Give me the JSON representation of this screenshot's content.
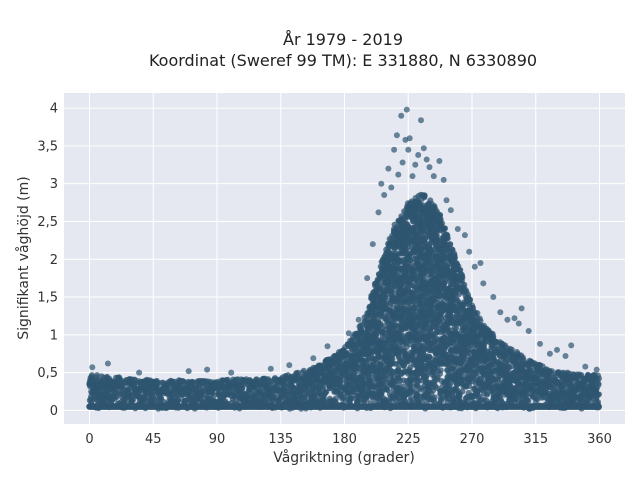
{
  "chart_data": {
    "type": "scatter",
    "title_line1": "År 1979 - 2019",
    "title_line2": "Koordinat (Sweref 99 TM): E 331880, N 6330890",
    "xlabel": "Vågriktning (grader)",
    "ylabel": "Signifikant våghöjd (m)",
    "xlim": [
      -18,
      378
    ],
    "ylim": [
      -0.18,
      4.2
    ],
    "x_ticks": [
      0,
      45,
      90,
      135,
      180,
      225,
      270,
      315,
      360
    ],
    "x_tick_labels": [
      "0",
      "45",
      "90",
      "135",
      "180",
      "225",
      "270",
      "315",
      "360"
    ],
    "y_ticks": [
      0,
      0.5,
      1,
      1.5,
      2,
      2.5,
      3,
      3.5,
      4
    ],
    "y_tick_labels": [
      "0",
      "0,5",
      "1",
      "1,5",
      "2",
      "2,5",
      "3",
      "3,5",
      "4"
    ],
    "grid": true,
    "colors": {
      "background": "#e5e8f0",
      "grid": "#ffffff",
      "marker": "#2f5570"
    },
    "envelope": {
      "x": [
        0,
        20,
        45,
        90,
        135,
        160,
        180,
        195,
        205,
        215,
        225,
        235,
        245,
        255,
        262,
        270,
        280,
        290,
        300,
        315,
        330,
        345,
        360
      ],
      "y_upper": [
        0.48,
        0.44,
        0.4,
        0.4,
        0.44,
        0.58,
        0.82,
        1.25,
        1.9,
        2.45,
        2.75,
        2.9,
        2.7,
        2.2,
        1.85,
        1.4,
        1.1,
        0.9,
        0.8,
        0.62,
        0.52,
        0.48,
        0.48
      ]
    },
    "outliers": [
      {
        "x": 2,
        "y": 0.57
      },
      {
        "x": 13,
        "y": 0.62
      },
      {
        "x": 35,
        "y": 0.5
      },
      {
        "x": 70,
        "y": 0.52
      },
      {
        "x": 83,
        "y": 0.54
      },
      {
        "x": 100,
        "y": 0.5
      },
      {
        "x": 128,
        "y": 0.55
      },
      {
        "x": 141,
        "y": 0.6
      },
      {
        "x": 158,
        "y": 0.69
      },
      {
        "x": 168,
        "y": 0.85
      },
      {
        "x": 183,
        "y": 1.02
      },
      {
        "x": 190,
        "y": 1.2
      },
      {
        "x": 196,
        "y": 1.75
      },
      {
        "x": 200,
        "y": 2.2
      },
      {
        "x": 204,
        "y": 2.62
      },
      {
        "x": 206,
        "y": 3.0
      },
      {
        "x": 208,
        "y": 2.85
      },
      {
        "x": 211,
        "y": 3.2
      },
      {
        "x": 213,
        "y": 2.95
      },
      {
        "x": 215,
        "y": 3.45
      },
      {
        "x": 217,
        "y": 3.64
      },
      {
        "x": 218,
        "y": 3.12
      },
      {
        "x": 220,
        "y": 3.9
      },
      {
        "x": 221,
        "y": 3.28
      },
      {
        "x": 223,
        "y": 3.58
      },
      {
        "x": 224,
        "y": 3.98
      },
      {
        "x": 225,
        "y": 3.45
      },
      {
        "x": 226,
        "y": 3.6
      },
      {
        "x": 228,
        "y": 3.1
      },
      {
        "x": 230,
        "y": 3.25
      },
      {
        "x": 232,
        "y": 3.38
      },
      {
        "x": 234,
        "y": 3.84
      },
      {
        "x": 236,
        "y": 3.47
      },
      {
        "x": 238,
        "y": 3.32
      },
      {
        "x": 240,
        "y": 3.22
      },
      {
        "x": 243,
        "y": 3.1
      },
      {
        "x": 247,
        "y": 3.3
      },
      {
        "x": 250,
        "y": 3.05
      },
      {
        "x": 252,
        "y": 2.78
      },
      {
        "x": 255,
        "y": 2.65
      },
      {
        "x": 260,
        "y": 2.4
      },
      {
        "x": 265,
        "y": 2.32
      },
      {
        "x": 268,
        "y": 2.1
      },
      {
        "x": 272,
        "y": 1.9
      },
      {
        "x": 276,
        "y": 1.95
      },
      {
        "x": 278,
        "y": 1.68
      },
      {
        "x": 285,
        "y": 1.5
      },
      {
        "x": 290,
        "y": 1.3
      },
      {
        "x": 295,
        "y": 1.2
      },
      {
        "x": 300,
        "y": 1.22
      },
      {
        "x": 303,
        "y": 1.15
      },
      {
        "x": 305,
        "y": 1.35
      },
      {
        "x": 310,
        "y": 1.05
      },
      {
        "x": 318,
        "y": 0.88
      },
      {
        "x": 325,
        "y": 0.75
      },
      {
        "x": 330,
        "y": 0.8
      },
      {
        "x": 336,
        "y": 0.72
      },
      {
        "x": 340,
        "y": 0.86
      },
      {
        "x": 350,
        "y": 0.58
      },
      {
        "x": 358,
        "y": 0.54
      }
    ]
  }
}
